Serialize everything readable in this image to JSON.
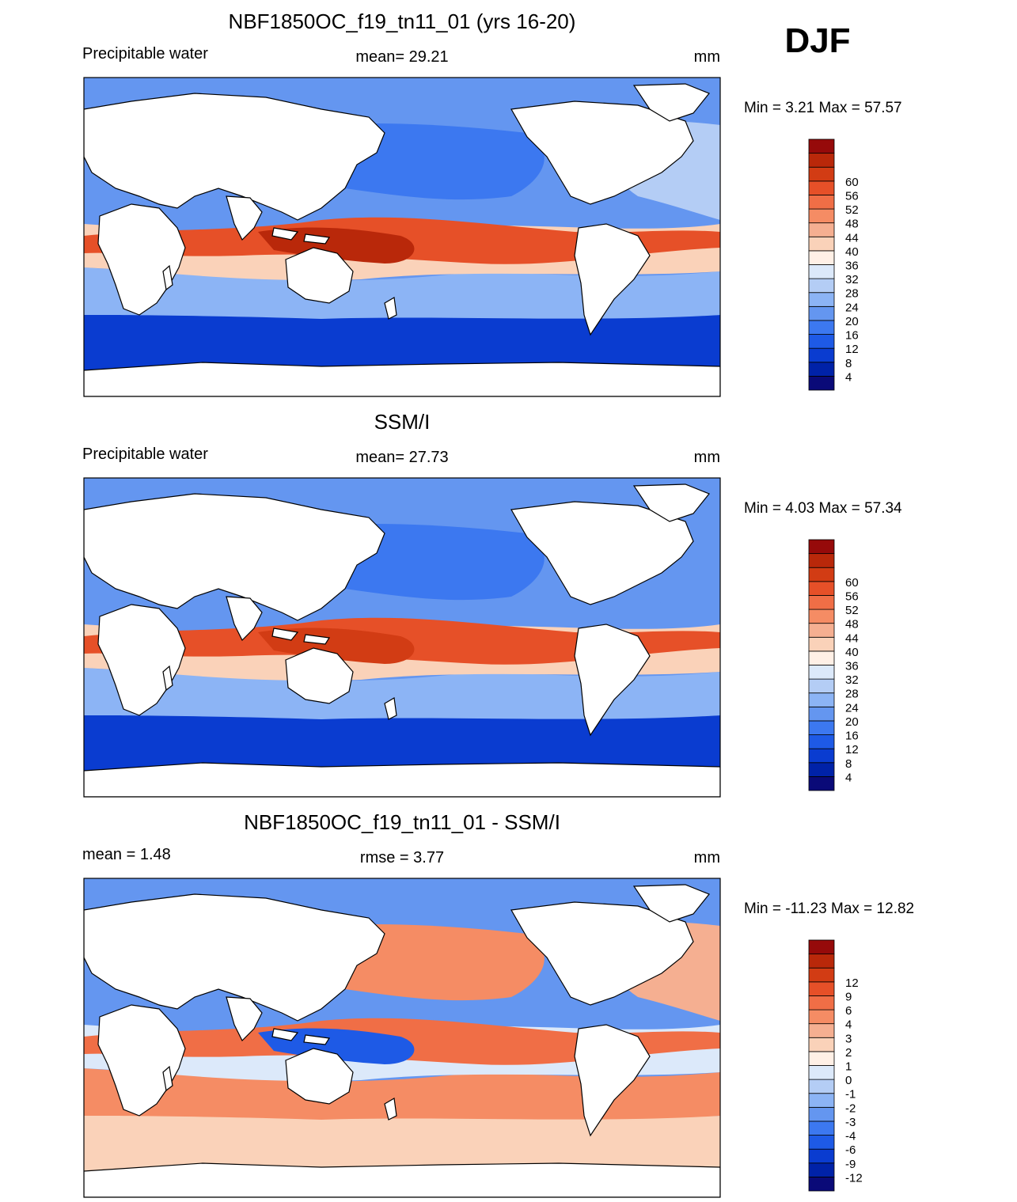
{
  "season": "DJF",
  "panels": [
    {
      "id": "model",
      "title": "NBF1850OC_f19_tn11_01 (yrs 16-20)",
      "left_label": "Precipitable water",
      "center_label": "mean=  29.21",
      "units": "mm",
      "minmax": "Min =   3.21 Max =  57.57",
      "colorbar": {
        "colors": [
          "#0a0a78",
          "#0022a8",
          "#0a3cd0",
          "#1e5ae6",
          "#3c78f0",
          "#6496f0",
          "#8cb4f5",
          "#b4cdf5",
          "#dce9fa",
          "#fff0e6",
          "#fad2b9",
          "#f5af91",
          "#f58c64",
          "#f06e46",
          "#e65028",
          "#d23c14",
          "#b9280a",
          "#960a0a"
        ],
        "labels": [
          "4",
          "8",
          "12",
          "16",
          "20",
          "24",
          "28",
          "32",
          "36",
          "40",
          "44",
          "48",
          "52",
          "56",
          "60"
        ],
        "label_offset": 1
      }
    },
    {
      "id": "obs",
      "title": "SSM/I",
      "left_label": "Precipitable water",
      "center_label": "mean=  27.73",
      "units": "mm",
      "minmax": "Min =   4.03 Max =  57.34",
      "colorbar": {
        "colors": [
          "#0a0a78",
          "#0022a8",
          "#0a3cd0",
          "#1e5ae6",
          "#3c78f0",
          "#6496f0",
          "#8cb4f5",
          "#b4cdf5",
          "#dce9fa",
          "#fff0e6",
          "#fad2b9",
          "#f5af91",
          "#f58c64",
          "#f06e46",
          "#e65028",
          "#d23c14",
          "#b9280a",
          "#960a0a"
        ],
        "labels": [
          "4",
          "8",
          "12",
          "16",
          "20",
          "24",
          "28",
          "32",
          "36",
          "40",
          "44",
          "48",
          "52",
          "56",
          "60"
        ],
        "label_offset": 1
      }
    },
    {
      "id": "diff",
      "title": "NBF1850OC_f19_tn11_01 - SSM/I",
      "left_label": "mean =   1.48",
      "center_label": "rmse =   3.77",
      "units": "mm",
      "minmax": "Min = -11.23 Max =  12.82",
      "colorbar": {
        "colors": [
          "#0a0a78",
          "#0022a8",
          "#0a3cd0",
          "#1e5ae6",
          "#3c78f0",
          "#6496f0",
          "#8cb4f5",
          "#b4cdf5",
          "#dce9fa",
          "#fff0e6",
          "#fad2b9",
          "#f5af91",
          "#f58c64",
          "#f06e46",
          "#e65028",
          "#d23c14",
          "#b9280a",
          "#960a0a"
        ],
        "labels": [
          "-12",
          "-9",
          "-6",
          "-4",
          "-3",
          "-2",
          "-1",
          "0",
          "1",
          "2",
          "3",
          "4",
          "6",
          "9",
          "12"
        ],
        "label_offset": 1
      }
    }
  ],
  "map_layers": {
    "model": [
      {
        "color": "#0a3cd0",
        "band": "south"
      },
      {
        "color": "#8cb4f5",
        "band": "midsouth"
      },
      {
        "color": "#fad2b9",
        "band": "subtrop"
      },
      {
        "color": "#e65028",
        "band": "tropics"
      },
      {
        "color": "#b9280a",
        "band": "warmpool"
      },
      {
        "color": "#3c78f0",
        "band": "northpac"
      },
      {
        "color": "#b4cdf5",
        "band": "northatl"
      }
    ],
    "obs": [
      {
        "color": "#0a3cd0",
        "band": "south"
      },
      {
        "color": "#8cb4f5",
        "band": "midsouth"
      },
      {
        "color": "#fad2b9",
        "band": "subtrop"
      },
      {
        "color": "#e65028",
        "band": "tropics"
      },
      {
        "color": "#d23c14",
        "band": "warmpool"
      },
      {
        "color": "#3c78f0",
        "band": "northpac"
      },
      {
        "color": "#6496f0",
        "band": "northatl"
      }
    ],
    "diff": [
      {
        "color": "#fad2b9",
        "band": "south"
      },
      {
        "color": "#f58c64",
        "band": "midsouth"
      },
      {
        "color": "#dce9fa",
        "band": "subtrop"
      },
      {
        "color": "#f06e46",
        "band": "tropics"
      },
      {
        "color": "#1e5ae6",
        "band": "warmpool"
      },
      {
        "color": "#f58c64",
        "band": "northpac"
      },
      {
        "color": "#f5af91",
        "band": "northatl"
      }
    ]
  }
}
